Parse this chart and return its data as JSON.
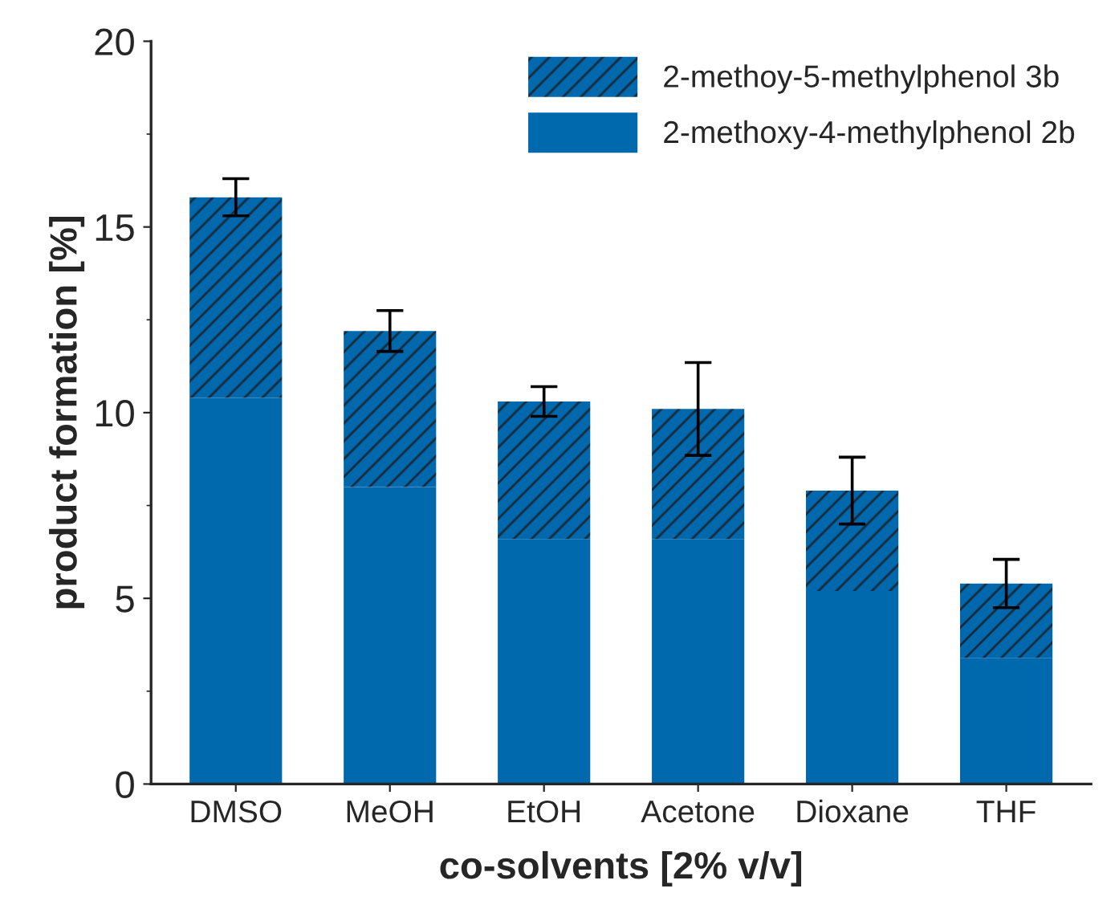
{
  "chart_data": {
    "type": "bar",
    "stacked": true,
    "xlabel": "co-solvents [2% v/v]",
    "ylabel": "product formation [%]",
    "categories": [
      "DMSO",
      "MeOH",
      "EtOH",
      "Acetone",
      "Dioxane",
      "THF"
    ],
    "series": [
      {
        "name": "2-methoxy-4-methylphenol 2b",
        "color": "#0068ad",
        "values": [
          10.4,
          8.0,
          6.6,
          6.6,
          5.2,
          3.4
        ]
      },
      {
        "name": "2-methoy-5-methylphenol 3b",
        "color": "#0068ad",
        "values": [
          5.4,
          4.2,
          3.7,
          3.5,
          2.7,
          2.0
        ],
        "errors": [
          0.5,
          0.55,
          0.4,
          1.25,
          0.9,
          0.65
        ]
      }
    ],
    "ylim": [
      0,
      20
    ],
    "yticks": [
      0,
      5,
      10,
      15,
      20
    ],
    "grid": false,
    "legend": "top right"
  }
}
